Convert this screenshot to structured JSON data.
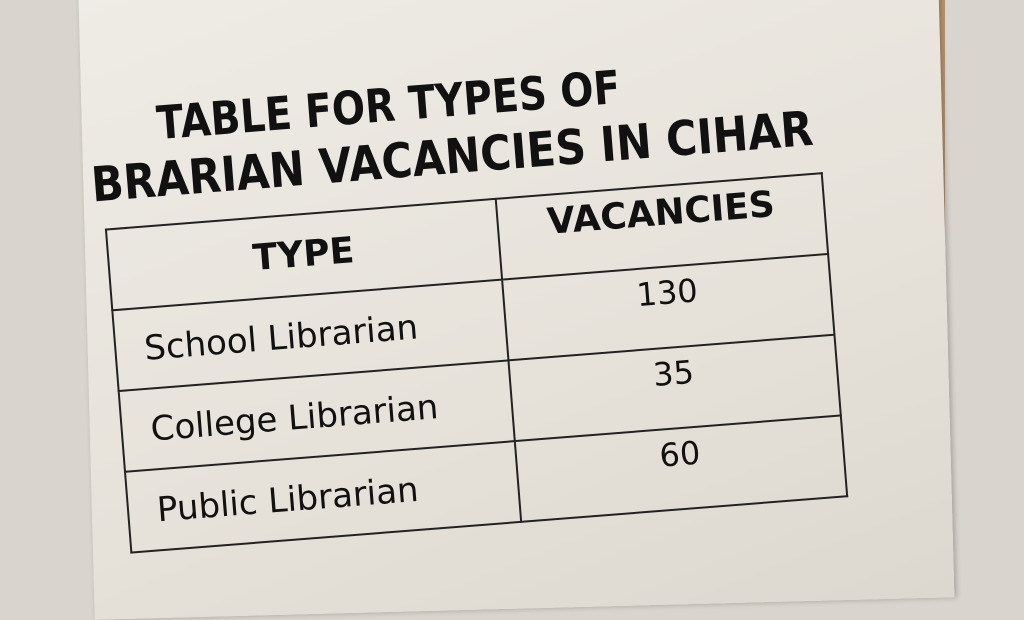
{
  "title": {
    "line1": "TABLE FOR TYPES OF",
    "line2": "BRARIAN VACANCIES IN CIHAR"
  },
  "table": {
    "headers": [
      "TYPE",
      "VACANCIES"
    ],
    "rows": [
      {
        "type": "School Librarian",
        "vacancies": "130"
      },
      {
        "type": "College Librarian",
        "vacancies": "35"
      },
      {
        "type": "Public Librarian",
        "vacancies": "60"
      }
    ]
  }
}
